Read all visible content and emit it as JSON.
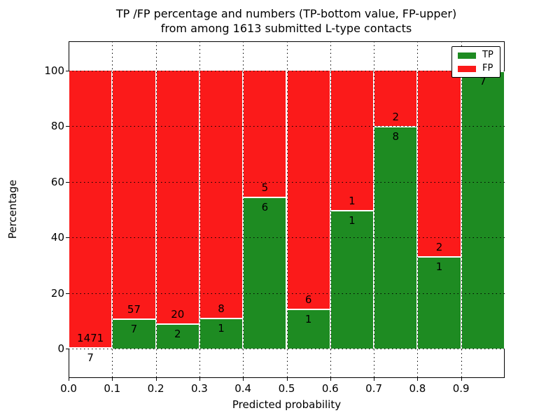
{
  "chart_data": {
    "type": "bar",
    "stacked": true,
    "normalized_to_percent": true,
    "title_line1": "TP /FP percentage and numbers (TP-bottom value, FP-upper)",
    "title_line2": "from among 1613 submitted L-type contacts",
    "xlabel": "Predicted probability",
    "ylabel": "Percentage",
    "total_contacts": 1613,
    "categories": [
      "0.0-0.1",
      "0.1-0.2",
      "0.2-0.3",
      "0.3-0.4",
      "0.4-0.5",
      "0.5-0.6",
      "0.6-0.7",
      "0.7-0.8",
      "0.8-0.9",
      "0.9-1.0"
    ],
    "series": [
      {
        "name": "TP",
        "counts": [
          7,
          7,
          2,
          1,
          6,
          1,
          1,
          8,
          1,
          7
        ],
        "percent_of_bin": [
          0.47,
          10.94,
          9.09,
          11.11,
          54.55,
          14.29,
          50.0,
          80.0,
          33.33,
          100.0
        ]
      },
      {
        "name": "FP",
        "counts": [
          1471,
          57,
          20,
          8,
          5,
          6,
          1,
          2,
          2,
          0
        ],
        "percent_of_bin": [
          99.53,
          89.06,
          90.91,
          88.89,
          45.45,
          85.71,
          50.0,
          20.0,
          66.67,
          0.0
        ]
      }
    ],
    "x_tick_labels": [
      "0.0",
      "0.1",
      "0.2",
      "0.3",
      "0.4",
      "0.5",
      "0.6",
      "0.7",
      "0.8",
      "0.9"
    ],
    "y_ticks": [
      0,
      20,
      40,
      60,
      80,
      100
    ],
    "y_tick_labels": [
      "0",
      "20",
      "40",
      "60",
      "80",
      "100"
    ],
    "xlim": [
      0.0,
      1.0
    ],
    "ylim_approx": [
      -11,
      111
    ],
    "grid": true,
    "grid_style": "dotted",
    "colors": {
      "tp": "#1e8b22",
      "fp": "#fb1a1a",
      "bar_edge": "#ffffff",
      "grid": "#000000"
    },
    "legend": {
      "position": "upper right",
      "entries": [
        {
          "label": "TP",
          "color": "#1e8b22"
        },
        {
          "label": "FP",
          "color": "#fb1a1a"
        }
      ]
    }
  }
}
